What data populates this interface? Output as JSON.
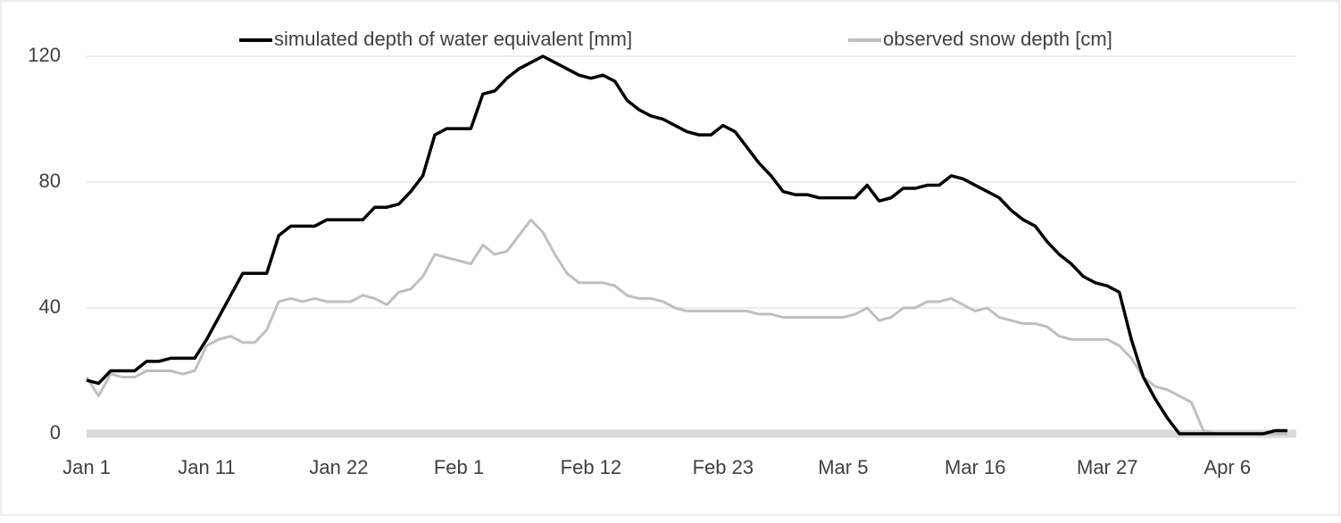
{
  "chart_data": {
    "type": "line",
    "categories": [
      "Jan 1",
      null,
      null,
      null,
      null,
      null,
      null,
      null,
      null,
      null,
      "Jan 11",
      null,
      null,
      null,
      null,
      null,
      null,
      null,
      null,
      null,
      null,
      "Jan 22",
      null,
      null,
      null,
      null,
      null,
      null,
      null,
      null,
      null,
      "Feb 1",
      null,
      null,
      null,
      null,
      null,
      null,
      null,
      null,
      null,
      null,
      "Feb 12",
      null,
      null,
      null,
      null,
      null,
      null,
      null,
      null,
      null,
      null,
      "Feb 23",
      null,
      null,
      null,
      null,
      null,
      null,
      null,
      null,
      null,
      "Mar 5",
      null,
      null,
      null,
      null,
      null,
      null,
      null,
      null,
      null,
      null,
      "Mar 16",
      null,
      null,
      null,
      null,
      null,
      null,
      null,
      null,
      null,
      null,
      "Mar 27",
      null,
      null,
      null,
      null,
      null,
      null,
      null,
      null,
      null,
      "Apr 6",
      null,
      null,
      null,
      null,
      null
    ],
    "series": [
      {
        "name": "simulated depth of water equivalent [mm]",
        "color": "#000000",
        "values": [
          17,
          16,
          20,
          20,
          20,
          23,
          23,
          24,
          24,
          24,
          30,
          37,
          44,
          51,
          51,
          51,
          63,
          66,
          66,
          66,
          68,
          68,
          68,
          68,
          72,
          72,
          73,
          77,
          82,
          95,
          97,
          97,
          97,
          108,
          109,
          113,
          116,
          118,
          120,
          118,
          116,
          114,
          113,
          114,
          112,
          106,
          103,
          101,
          100,
          98,
          96,
          95,
          95,
          98,
          96,
          91,
          86,
          82,
          77,
          76,
          76,
          75,
          75,
          75,
          75,
          79,
          74,
          75,
          78,
          78,
          79,
          79,
          82,
          81,
          79,
          77,
          75,
          71,
          68,
          66,
          61,
          57,
          54,
          50,
          48,
          47,
          45,
          30,
          18,
          11,
          5,
          0,
          0,
          0,
          0,
          0,
          0,
          0,
          0,
          1,
          1
        ]
      },
      {
        "name": "observed snow depth [cm]",
        "color": "#bfbfbf",
        "values": [
          18,
          12,
          19,
          18,
          18,
          20,
          20,
          20,
          19,
          20,
          28,
          30,
          31,
          29,
          29,
          33,
          42,
          43,
          42,
          43,
          42,
          42,
          42,
          44,
          43,
          41,
          45,
          46,
          50,
          57,
          56,
          55,
          54,
          60,
          57,
          58,
          63,
          68,
          64,
          57,
          51,
          48,
          48,
          48,
          47,
          44,
          43,
          43,
          42,
          40,
          39,
          39,
          39,
          39,
          39,
          39,
          38,
          38,
          37,
          37,
          37,
          37,
          37,
          37,
          38,
          40,
          36,
          37,
          40,
          40,
          42,
          42,
          43,
          41,
          39,
          40,
          37,
          36,
          35,
          35,
          34,
          31,
          30,
          30,
          30,
          30,
          28,
          24,
          18,
          15,
          14,
          12,
          10,
          1,
          0,
          0,
          0,
          0,
          0,
          0,
          0
        ]
      }
    ],
    "ylim": [
      0,
      120
    ],
    "yticks": [
      0,
      40,
      80,
      120
    ],
    "grid": true,
    "legend": "top"
  }
}
